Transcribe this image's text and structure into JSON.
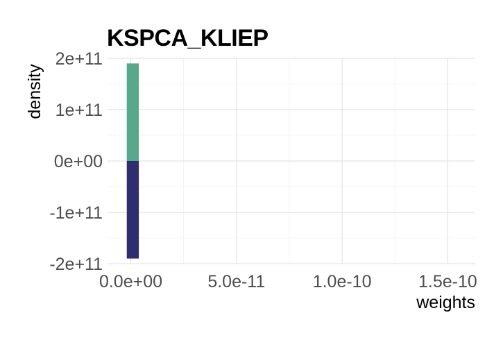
{
  "chart_data": {
    "type": "bar",
    "title": "KSPCA_KLIEP",
    "xlabel": "weights",
    "ylabel": "density",
    "xlim": [
      -1.1e-11,
      1.63e-10
    ],
    "ylim": [
      -200000000000.0,
      200000000000.0
    ],
    "x_ticks": [
      {
        "value": 0,
        "label": "0.0e+00"
      },
      {
        "value": 5e-11,
        "label": "5.0e-11"
      },
      {
        "value": 1e-10,
        "label": "1.0e-10"
      },
      {
        "value": 1.5e-10,
        "label": "1.5e-10"
      }
    ],
    "y_ticks": [
      {
        "value": 200000000000.0,
        "label": "2e+11"
      },
      {
        "value": 100000000000.0,
        "label": "1e+11"
      },
      {
        "value": 0,
        "label": "0e+00"
      },
      {
        "value": -100000000000.0,
        "label": "-1e+11"
      },
      {
        "value": -200000000000.0,
        "label": "-2e+11"
      }
    ],
    "bars": [
      {
        "x0": -1.9e-12,
        "x1": 3.8e-12,
        "y": 190000000000.0,
        "color": "#5aa88c"
      },
      {
        "x0": -1.9e-12,
        "x1": 3.8e-12,
        "y": -190000000000.0,
        "color": "#302d6e"
      }
    ],
    "grid": true,
    "legend": "none"
  }
}
